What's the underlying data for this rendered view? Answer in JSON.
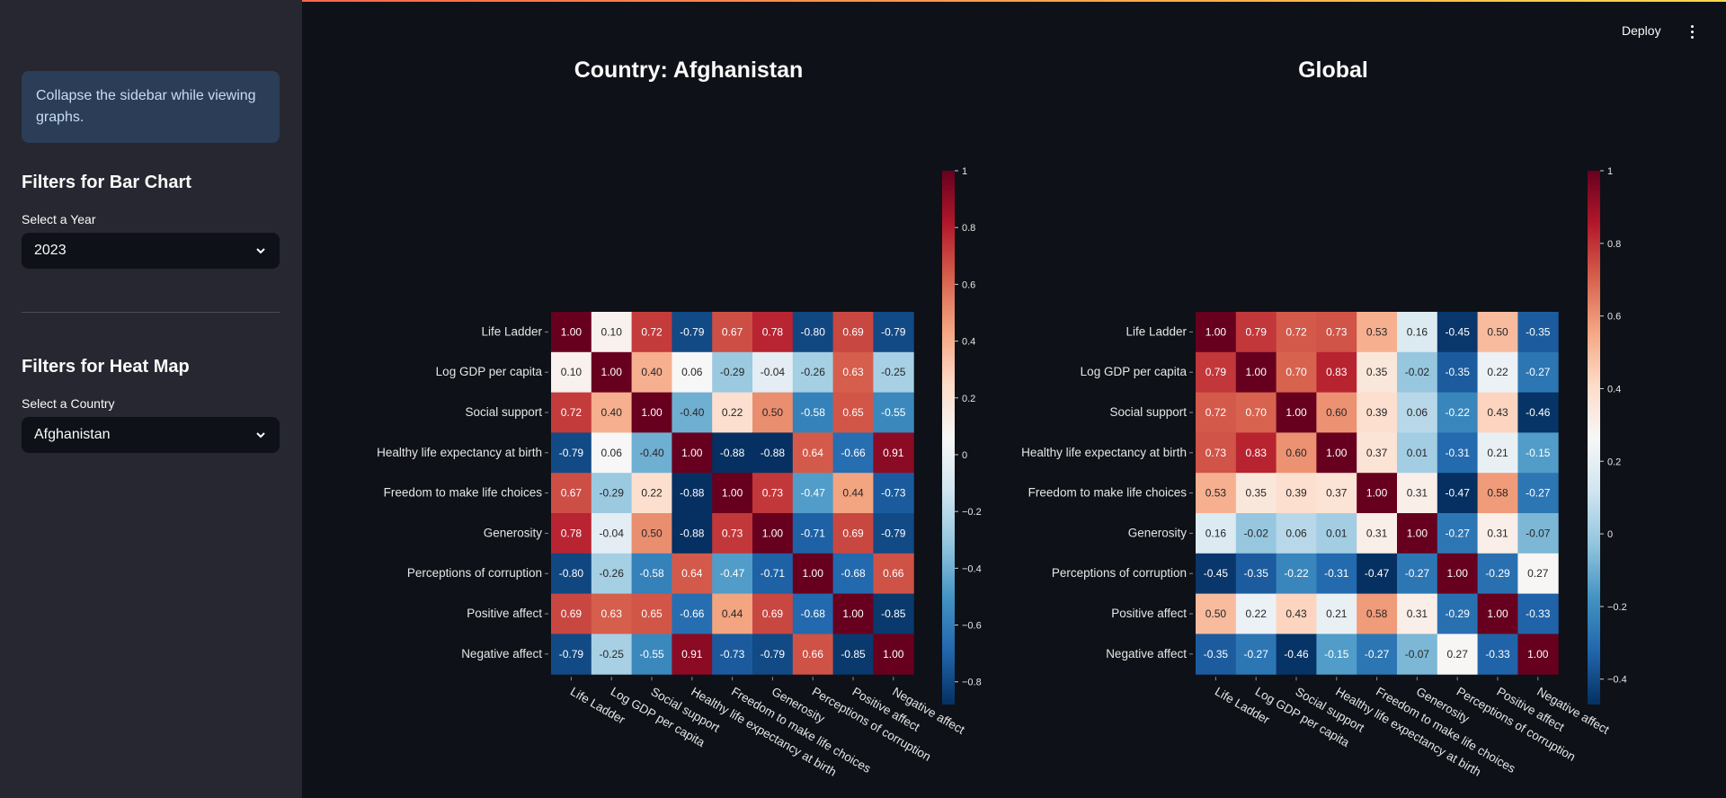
{
  "sidebar": {
    "info_text": "Collapse the sidebar while viewing graphs.",
    "bar_section": {
      "heading": "Filters for Bar Chart",
      "select_label": "Select a Year",
      "selected": "2023"
    },
    "heat_section": {
      "heading": "Filters for Heat Map",
      "select_label": "Select a Country",
      "selected": "Afghanistan"
    }
  },
  "header": {
    "deploy_label": "Deploy"
  },
  "colors": {
    "background": "#0e1117",
    "sidebar": "#262730",
    "info_bg": "#2b3d57",
    "info_text": "#c7ddf5"
  },
  "chart_data": [
    {
      "type": "heatmap",
      "title": "Country: Afghanistan",
      "colormap": "RdBu_r",
      "categories": [
        "Life Ladder",
        "Log GDP per capita",
        "Social support",
        "Healthy life expectancy at birth",
        "Freedom to make life choices",
        "Generosity",
        "Perceptions of corruption",
        "Positive affect",
        "Negative affect"
      ],
      "values": [
        [
          1.0,
          0.1,
          0.72,
          -0.79,
          0.67,
          0.78,
          -0.8,
          0.69,
          -0.79
        ],
        [
          0.1,
          1.0,
          0.4,
          0.06,
          -0.29,
          -0.04,
          -0.26,
          0.63,
          -0.25
        ],
        [
          0.72,
          0.4,
          1.0,
          -0.4,
          0.22,
          0.5,
          -0.58,
          0.65,
          -0.55
        ],
        [
          -0.79,
          0.06,
          -0.4,
          1.0,
          -0.88,
          -0.88,
          0.64,
          -0.66,
          0.91
        ],
        [
          0.67,
          -0.29,
          0.22,
          -0.88,
          1.0,
          0.73,
          -0.47,
          0.44,
          -0.73
        ],
        [
          0.78,
          -0.04,
          0.5,
          -0.88,
          0.73,
          1.0,
          -0.71,
          0.69,
          -0.79
        ],
        [
          -0.8,
          -0.26,
          -0.58,
          0.64,
          -0.47,
          -0.71,
          1.0,
          -0.68,
          0.66
        ],
        [
          0.69,
          0.63,
          0.65,
          -0.66,
          0.44,
          0.69,
          -0.68,
          1.0,
          -0.85
        ],
        [
          -0.79,
          -0.25,
          -0.55,
          0.91,
          -0.73,
          -0.79,
          0.66,
          -0.85,
          1.0
        ]
      ],
      "vlim": [
        -0.88,
        1.0
      ],
      "colorbar_ticks": [
        1,
        0.8,
        0.6,
        0.4,
        0.2,
        0,
        -0.2,
        -0.4,
        -0.6,
        -0.8
      ],
      "colorbar_labels": [
        "1",
        "0.8",
        "0.6",
        "0.4",
        "0.2",
        "0",
        "−0.2",
        "−0.4",
        "−0.6",
        "−0.8"
      ]
    },
    {
      "type": "heatmap",
      "title": "Global",
      "colormap": "RdBu_r",
      "categories": [
        "Life Ladder",
        "Log GDP per capita",
        "Social support",
        "Healthy life expectancy at birth",
        "Freedom to make life choices",
        "Generosity",
        "Perceptions of corruption",
        "Positive affect",
        "Negative affect"
      ],
      "values": [
        [
          1.0,
          0.79,
          0.72,
          0.73,
          0.53,
          0.16,
          -0.45,
          0.5,
          -0.35
        ],
        [
          0.79,
          1.0,
          0.7,
          0.83,
          0.35,
          -0.02,
          -0.35,
          0.22,
          -0.27
        ],
        [
          0.72,
          0.7,
          1.0,
          0.6,
          0.39,
          0.06,
          -0.22,
          0.43,
          -0.46
        ],
        [
          0.73,
          0.83,
          0.6,
          1.0,
          0.37,
          0.01,
          -0.31,
          0.21,
          -0.15
        ],
        [
          0.53,
          0.35,
          0.39,
          0.37,
          1.0,
          0.31,
          -0.47,
          0.58,
          -0.27
        ],
        [
          0.16,
          -0.02,
          0.06,
          0.01,
          0.31,
          1.0,
          -0.27,
          0.31,
          -0.07
        ],
        [
          -0.45,
          -0.35,
          -0.22,
          -0.31,
          -0.47,
          -0.27,
          1.0,
          -0.29,
          0.27
        ],
        [
          0.5,
          0.22,
          0.43,
          0.21,
          0.58,
          0.31,
          -0.29,
          1.0,
          -0.33
        ],
        [
          -0.35,
          -0.27,
          -0.46,
          -0.15,
          -0.27,
          -0.07,
          0.27,
          -0.33,
          1.0
        ]
      ],
      "vlim": [
        -0.47,
        1.0
      ],
      "colorbar_ticks": [
        1,
        0.8,
        0.6,
        0.4,
        0.2,
        0,
        -0.2,
        -0.4
      ],
      "colorbar_labels": [
        "1",
        "0.8",
        "0.6",
        "0.4",
        "0.2",
        "0",
        "−0.2",
        "−0.4"
      ]
    }
  ]
}
